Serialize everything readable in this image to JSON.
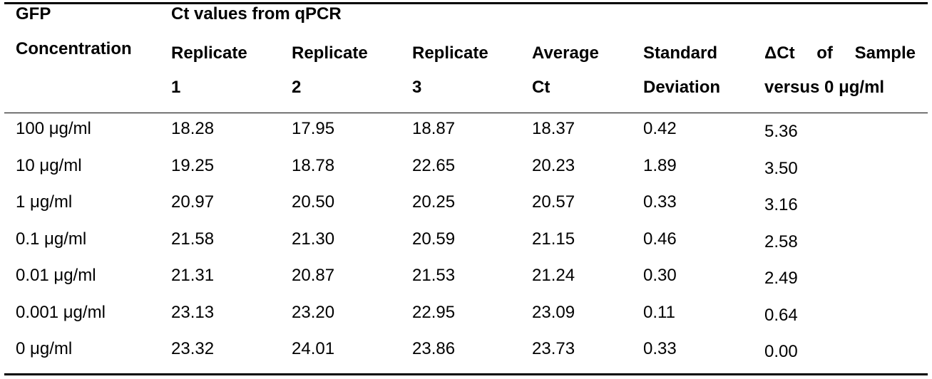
{
  "header": {
    "gfp_line1": "GFP",
    "gfp_line2": "Concentration",
    "ct_group": "Ct values from qPCR",
    "rep1_line1": "Replicate",
    "rep1_line2": "1",
    "rep2_line1": "Replicate",
    "rep2_line2": "2",
    "rep3_line1": "Replicate",
    "rep3_line2": "3",
    "avg_line1": "Average",
    "avg_line2": "Ct",
    "sd_line1": "Standard",
    "sd_line2": "Deviation",
    "dct_w1": "ΔCt",
    "dct_w2": "of",
    "dct_w3": "Sample",
    "dct_line2": "versus 0 μg/ml"
  },
  "rows": [
    {
      "conc": "100 μg/ml",
      "r1": "18.28",
      "r2": "17.95",
      "r3": "18.87",
      "avg": "18.37",
      "sd": "0.42",
      "dct": "5.36"
    },
    {
      "conc": "10 μg/ml",
      "r1": "19.25",
      "r2": "18.78",
      "r3": "22.65",
      "avg": "20.23",
      "sd": "1.89",
      "dct": "3.50"
    },
    {
      "conc": "1 μg/ml",
      "r1": "20.97",
      "r2": "20.50",
      "r3": "20.25",
      "avg": "20.57",
      "sd": "0.33",
      "dct": "3.16"
    },
    {
      "conc": "0.1 μg/ml",
      "r1": "21.58",
      "r2": "21.30",
      "r3": "20.59",
      "avg": "21.15",
      "sd": "0.46",
      "dct": "2.58"
    },
    {
      "conc": "0.01 μg/ml",
      "r1": "21.31",
      "r2": "20.87",
      "r3": "21.53",
      "avg": "21.24",
      "sd": "0.30",
      "dct": "2.49"
    },
    {
      "conc": "0.001 μg/ml",
      "r1": "23.13",
      "r2": "23.20",
      "r3": "22.95",
      "avg": "23.09",
      "sd": "0.11",
      "dct": "0.64"
    },
    {
      "conc": "0 μg/ml",
      "r1": "23.32",
      "r2": "24.01",
      "r3": "23.86",
      "avg": "23.73",
      "sd": "0.33",
      "dct": "0.00"
    }
  ]
}
